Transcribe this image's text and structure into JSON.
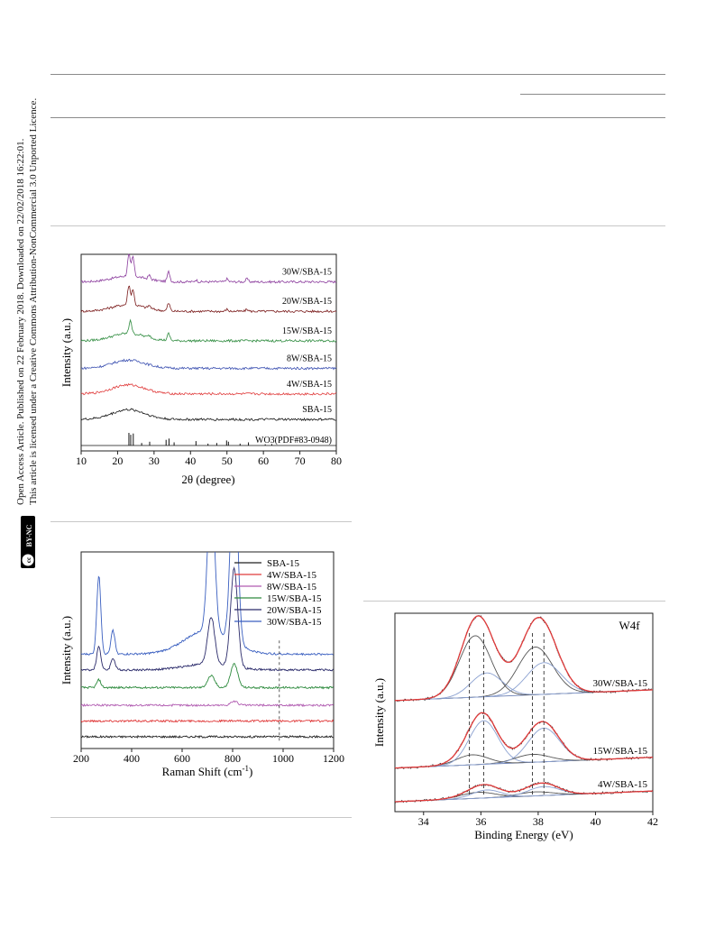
{
  "side_license": {
    "line1": "Open Access Article. Published on 22 February 2018. Downloaded on 22/02/2018 16:22:01.",
    "line2": "This article is licensed under a Creative Commons Attribution-NonCommercial 3.0 Unported Licence.",
    "badge_cc": "cc",
    "badge_text": "BY-NC"
  },
  "chart_data": [
    {
      "type": "line",
      "ylabel": "Intensity (a.u.)",
      "xlabel": "2θ (degree)",
      "xlim": [
        10,
        80
      ],
      "xticks": [
        10,
        20,
        30,
        40,
        50,
        60,
        70,
        80
      ],
      "yticks": false,
      "grid": false,
      "series": [
        {
          "name": "30W/SBA-15",
          "color": "#8a3a9c",
          "baseline": 0.86,
          "peaks": [
            [
              23.1,
              0.11
            ],
            [
              24.2,
              0.1
            ],
            [
              34.0,
              0.05
            ],
            [
              28.7,
              0.02
            ],
            [
              50.0,
              0.015
            ],
            [
              55.5,
              0.015
            ],
            [
              41.5,
              0.01
            ]
          ]
        },
        {
          "name": "20W/SBA-15",
          "color": "#7a1a1a",
          "baseline": 0.71,
          "peaks": [
            [
              23.1,
              0.1
            ],
            [
              24.2,
              0.08
            ],
            [
              34.0,
              0.04
            ],
            [
              28.7,
              0.015
            ],
            [
              50.0,
              0.01
            ],
            [
              55.5,
              0.01
            ]
          ]
        },
        {
          "name": "15W/SBA-15",
          "color": "#2e8b3e",
          "baseline": 0.56,
          "peaks": [
            [
              23.5,
              0.07
            ],
            [
              34.0,
              0.035
            ],
            [
              28.7,
              0.01
            ]
          ]
        },
        {
          "name": "8W/SBA-15",
          "color": "#3a4fb0",
          "baseline": 0.42,
          "peaks": []
        },
        {
          "name": "4W/SBA-15",
          "color": "#e03a3a",
          "baseline": 0.29,
          "peaks": []
        },
        {
          "name": "SBA-15",
          "color": "#111111",
          "baseline": 0.16,
          "peaks": []
        }
      ],
      "reference": {
        "name": "WO3(PDF#83-0948)",
        "sticks": [
          [
            23.1,
            1.0
          ],
          [
            23.6,
            0.85
          ],
          [
            24.3,
            0.95
          ],
          [
            26.6,
            0.2
          ],
          [
            28.8,
            0.3
          ],
          [
            33.3,
            0.45
          ],
          [
            34.1,
            0.55
          ],
          [
            35.5,
            0.25
          ],
          [
            41.5,
            0.35
          ],
          [
            44.8,
            0.15
          ],
          [
            47.2,
            0.2
          ],
          [
            49.9,
            0.4
          ],
          [
            50.4,
            0.3
          ],
          [
            53.6,
            0.15
          ],
          [
            55.9,
            0.25
          ],
          [
            60.5,
            0.1
          ],
          [
            62.3,
            0.12
          ]
        ]
      }
    },
    {
      "type": "line",
      "ylabel": "Intensity (a.u.)",
      "xlabel": "Raman Shift (cm-1)",
      "xlabel_main": "Raman Shift (cm",
      "xlabel_sup": "-1",
      "xlabel_end": ")",
      "xlim": [
        200,
        1200
      ],
      "xticks": [
        200,
        400,
        600,
        800,
        1000,
        1200
      ],
      "grid": false,
      "legend": "top-right",
      "dashed_marker_x": 985,
      "series": [
        {
          "name": "SBA-15",
          "color": "#222222",
          "baseline": 0.06,
          "peaks": []
        },
        {
          "name": "4W/SBA-15",
          "color": "#e03a3a",
          "baseline": 0.14,
          "peaks": []
        },
        {
          "name": "8W/SBA-15",
          "color": "#b05ab0",
          "baseline": 0.22,
          "peaks": [
            [
              806,
              0.02
            ]
          ]
        },
        {
          "name": "15W/SBA-15",
          "color": "#2e8b3e",
          "baseline": 0.31,
          "peaks": [
            [
              270,
              0.04
            ],
            [
              715,
              0.06
            ],
            [
              806,
              0.12
            ]
          ]
        },
        {
          "name": "20W/SBA-15",
          "color": "#2a2a6a",
          "baseline": 0.4,
          "peaks": [
            [
              270,
              0.12
            ],
            [
              326,
              0.06
            ],
            [
              715,
              0.24
            ],
            [
              806,
              0.5
            ]
          ]
        },
        {
          "name": "30W/SBA-15",
          "color": "#3a5fc0",
          "baseline": 0.48,
          "peaks": [
            [
              270,
              0.4
            ],
            [
              326,
              0.12
            ],
            [
              715,
              0.72
            ],
            [
              806,
              0.95
            ]
          ]
        }
      ]
    },
    {
      "type": "line",
      "title": "W4f",
      "ylabel": "Intensity (a.u.)",
      "xlabel": "Binding Energy (eV)",
      "xlim": [
        33,
        42
      ],
      "xticks": [
        34,
        36,
        38,
        40,
        42
      ],
      "grid": false,
      "dashed_markers_x": [
        35.6,
        36.1,
        37.8,
        38.2
      ],
      "series": [
        {
          "name": "30W/SBA-15",
          "baseline": 0.56,
          "components": [
            [
              35.8,
              0.31,
              0.55,
              "#555555"
            ],
            [
              36.2,
              0.12,
              0.55,
              "#8aa0d0"
            ],
            [
              37.9,
              0.24,
              0.6,
              "#555555"
            ],
            [
              38.2,
              0.16,
              0.6,
              "#8aa0d0"
            ]
          ]
        },
        {
          "name": "15W/SBA-15",
          "baseline": 0.22,
          "components": [
            [
              35.7,
              0.05,
              0.55,
              "#555555"
            ],
            [
              36.1,
              0.22,
              0.5,
              "#8aa0d0"
            ],
            [
              37.8,
              0.04,
              0.6,
              "#555555"
            ],
            [
              38.2,
              0.17,
              0.55,
              "#8aa0d0"
            ]
          ]
        },
        {
          "name": "4W/SBA-15",
          "baseline": 0.05,
          "components": [
            [
              35.9,
              0.03,
              0.6,
              "#555555"
            ],
            [
              36.2,
              0.04,
              0.5,
              "#8aa0d0"
            ],
            [
              37.9,
              0.02,
              0.6,
              "#555555"
            ],
            [
              38.2,
              0.045,
              0.55,
              "#8aa0d0"
            ]
          ]
        }
      ]
    }
  ]
}
